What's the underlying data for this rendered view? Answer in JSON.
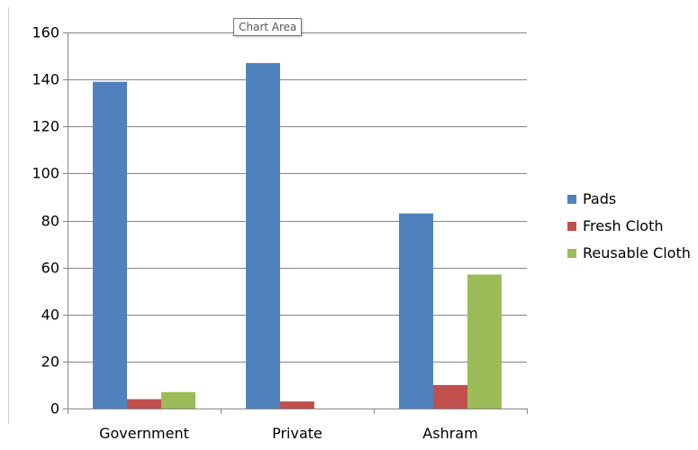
{
  "tooltip": {
    "text": "Chart Area"
  },
  "chart_data": {
    "type": "bar",
    "categories": [
      "Government",
      "Private",
      "Ashram"
    ],
    "series": [
      {
        "name": "Pads",
        "values": [
          139,
          147,
          83
        ],
        "color": "#4F81BD"
      },
      {
        "name": "Fresh Cloth",
        "values": [
          4,
          3,
          10
        ],
        "color": "#C0504D"
      },
      {
        "name": "Reusable Cloth",
        "values": [
          7,
          0,
          57
        ],
        "color": "#9BBB59"
      }
    ],
    "title": "",
    "xlabel": "",
    "ylabel": "",
    "ylim": [
      0,
      160
    ],
    "yticks": [
      0,
      20,
      40,
      60,
      80,
      100,
      120,
      140,
      160
    ],
    "grid": true,
    "legend_position": "right"
  }
}
